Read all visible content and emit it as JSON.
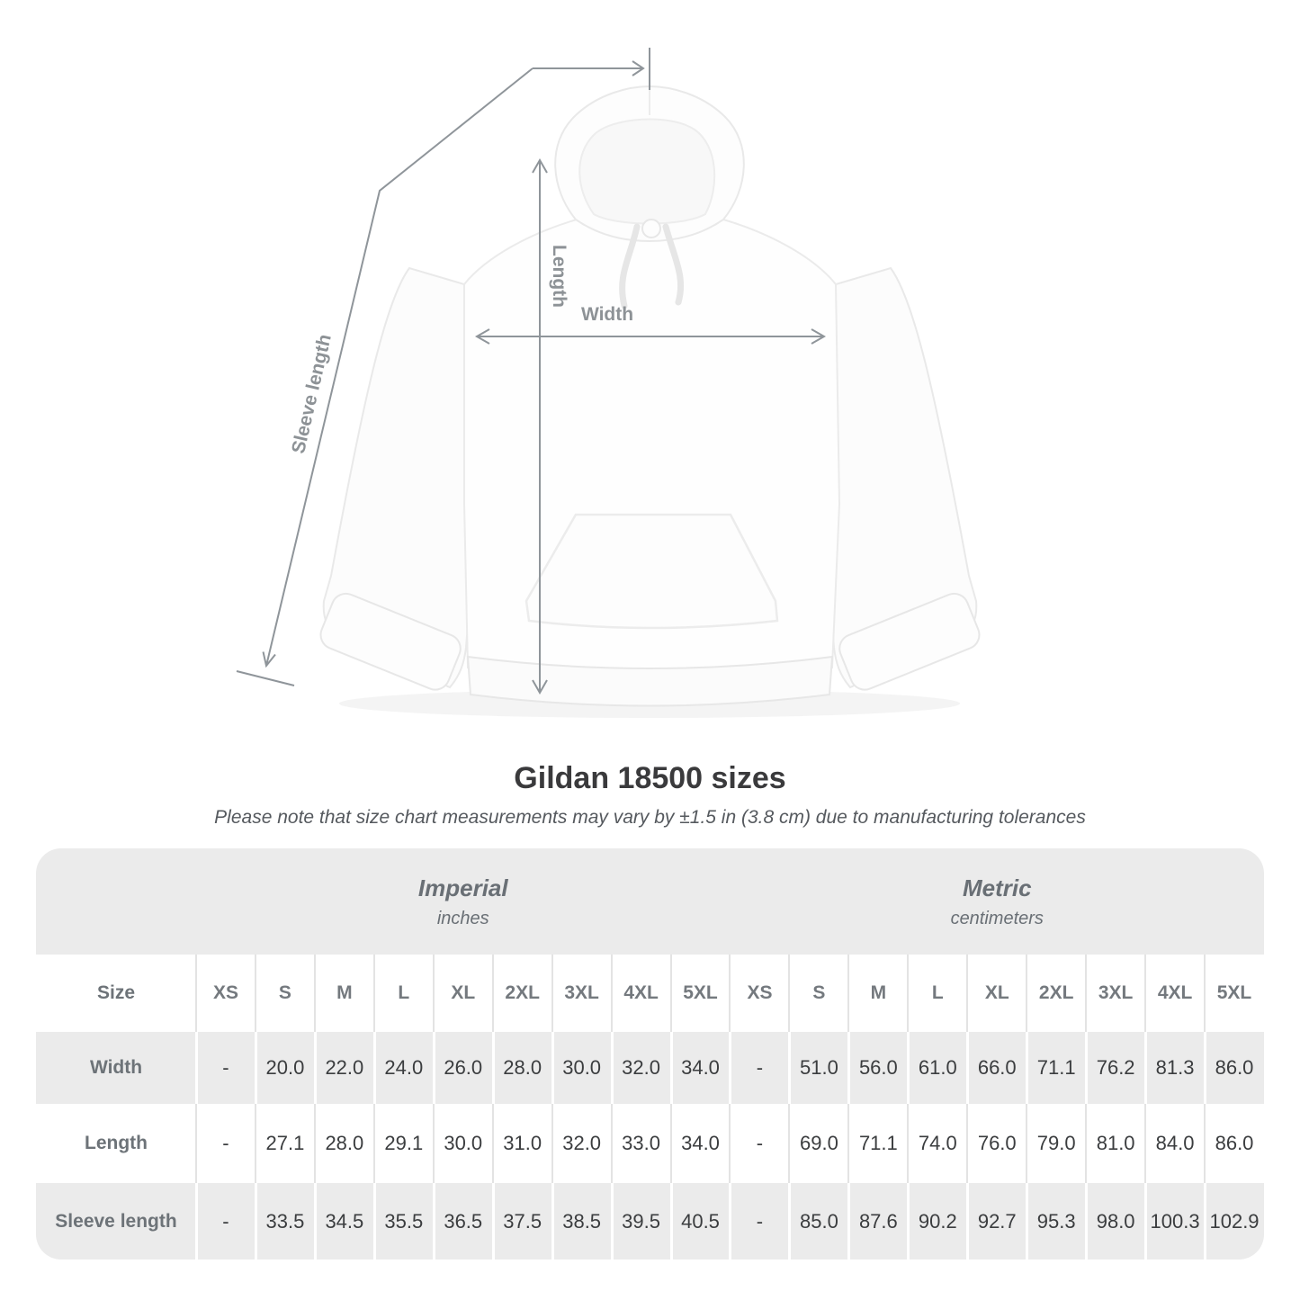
{
  "title": "Gildan 18500 sizes",
  "subtitle": "Please note that size chart measurements may vary by ±1.5 in (3.8 cm) due to manufacturing tolerances",
  "diagram": {
    "width_label": "Width",
    "length_label": "Length",
    "sleeve_label": "Sleeve length",
    "line_color": "#8f959a",
    "label_color": "#8d9296"
  },
  "chart_data": {
    "type": "table",
    "title": "Gildan 18500 sizes",
    "size_label": "Size",
    "groups": [
      {
        "name": "Imperial",
        "unit": "inches"
      },
      {
        "name": "Metric",
        "unit": "centimeters"
      }
    ],
    "sizes": [
      "XS",
      "S",
      "M",
      "L",
      "XL",
      "2XL",
      "3XL",
      "4XL",
      "5XL"
    ],
    "rows": [
      {
        "label": "Width",
        "imperial": [
          "-",
          "20.0",
          "22.0",
          "24.0",
          "26.0",
          "28.0",
          "30.0",
          "32.0",
          "34.0"
        ],
        "metric": [
          "-",
          "51.0",
          "56.0",
          "61.0",
          "66.0",
          "71.1",
          "76.2",
          "81.3",
          "86.0"
        ]
      },
      {
        "label": "Length",
        "imperial": [
          "-",
          "27.1",
          "28.0",
          "29.1",
          "30.0",
          "31.0",
          "32.0",
          "33.0",
          "34.0"
        ],
        "metric": [
          "-",
          "69.0",
          "71.1",
          "74.0",
          "76.0",
          "79.0",
          "81.0",
          "84.0",
          "86.0"
        ]
      },
      {
        "label": "Sleeve length",
        "imperial": [
          "-",
          "33.5",
          "34.5",
          "35.5",
          "36.5",
          "37.5",
          "38.5",
          "39.5",
          "40.5"
        ],
        "metric": [
          "-",
          "85.0",
          "87.6",
          "90.2",
          "92.7",
          "95.3",
          "98.0",
          "100.3",
          "102.9"
        ]
      }
    ],
    "table_bg": "#ebebeb"
  }
}
